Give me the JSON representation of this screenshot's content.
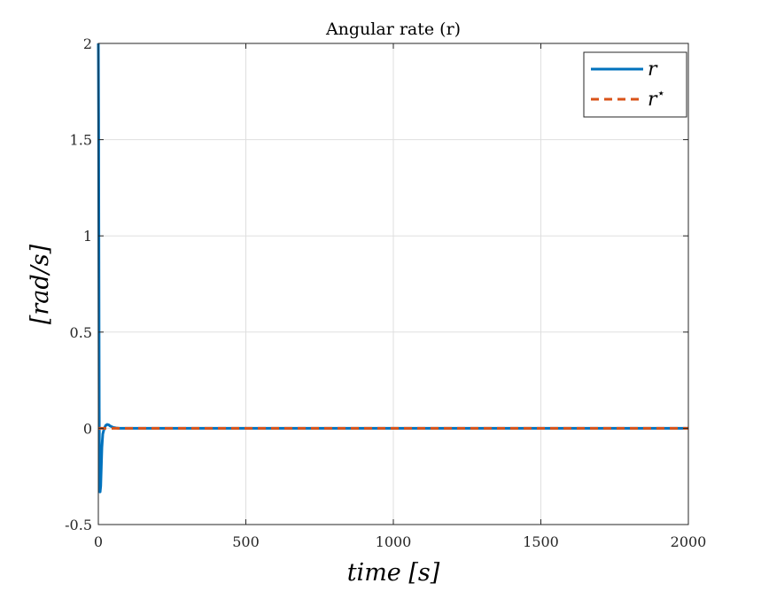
{
  "chart_data": {
    "type": "line",
    "title": "Angular rate (r)",
    "xlabel": "time [s]",
    "ylabel": "[rad/s]",
    "xlim": [
      0,
      2000
    ],
    "ylim": [
      -0.5,
      2
    ],
    "xticks": [
      0,
      500,
      1000,
      1500,
      2000
    ],
    "xtick_labels": [
      "0",
      "500",
      "1000",
      "1500",
      "2000"
    ],
    "yticks": [
      -0.5,
      0,
      0.5,
      1,
      1.5,
      2
    ],
    "ytick_labels": [
      "-0.5",
      "0",
      "0.5",
      "1",
      "1.5",
      "2"
    ],
    "grid": true,
    "legend_position": "top-right",
    "series": [
      {
        "name": "r",
        "style": "solid",
        "color": "#0072BD",
        "x": [
          0,
          1,
          2,
          3,
          4,
          5,
          6,
          8,
          10,
          12,
          15,
          20,
          25,
          30,
          35,
          40,
          50,
          60,
          70,
          80,
          100,
          150,
          2000
        ],
        "y": [
          2.0,
          1.6,
          0.8,
          0.1,
          -0.25,
          -0.33,
          -0.33,
          -0.3,
          -0.2,
          -0.1,
          -0.03,
          0.0,
          0.015,
          0.02,
          0.018,
          0.012,
          0.005,
          0.002,
          0.0,
          0.0,
          0.0,
          0.0,
          0.0
        ]
      },
      {
        "name": "r*",
        "style": "dashed",
        "color": "#D95319",
        "x": [
          0,
          2000
        ],
        "y": [
          0,
          0
        ]
      }
    ]
  }
}
